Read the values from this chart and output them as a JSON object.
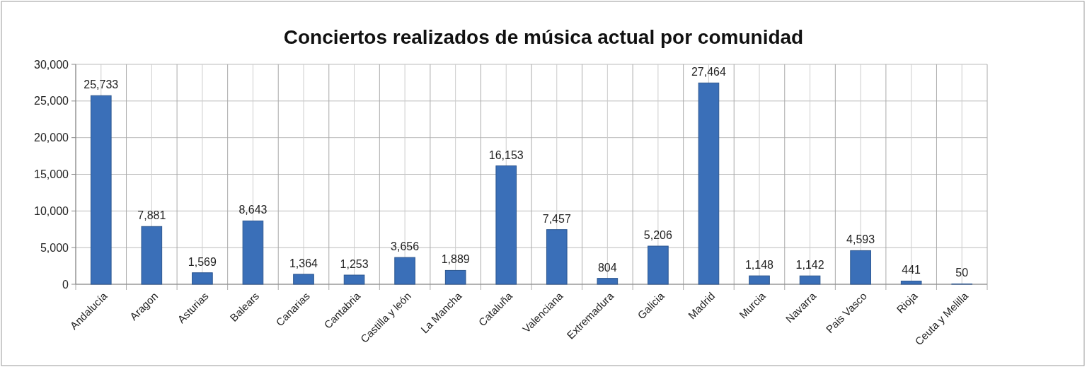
{
  "chart_data": {
    "type": "bar",
    "title": "Conciertos realizados de música actual por comunidad",
    "categories": [
      "Andalucía",
      "Aragon",
      "Asturias",
      "Balears",
      "Canarias",
      "Cantabria",
      "Castilla y león",
      "La Mancha",
      "Cataluña",
      "Valenciana",
      "Extremadura",
      "Galicia",
      "Madrid",
      "Murcia",
      "Navarra",
      "Pais Vasco",
      "Rioja",
      "Ceuta y Melilla"
    ],
    "values": [
      25733,
      7881,
      1569,
      8643,
      1364,
      1253,
      3656,
      1889,
      16153,
      7457,
      804,
      5206,
      27464,
      1148,
      1142,
      4593,
      441,
      50
    ],
    "color": "#3a6fb8",
    "ylim": [
      0,
      30000
    ],
    "yticks": [
      {
        "value": 0,
        "label": "0"
      },
      {
        "value": 5000,
        "label": "5,000"
      },
      {
        "value": 10000,
        "label": "10,000"
      },
      {
        "value": 15000,
        "label": "15,000"
      },
      {
        "value": 20000,
        "label": "20,000"
      },
      {
        "value": 25000,
        "label": "25,000"
      },
      {
        "value": 30000,
        "label": "30,000"
      }
    ],
    "value_labels": [
      "25,733",
      "7,881",
      "1,569",
      "8,643",
      "1,364",
      "1,253",
      "3,656",
      "1,889",
      "16,153",
      "7,457",
      "804",
      "5,206",
      "27,464",
      "1,148",
      "1,142",
      "4,593",
      "441",
      "50"
    ],
    "grid": true
  }
}
